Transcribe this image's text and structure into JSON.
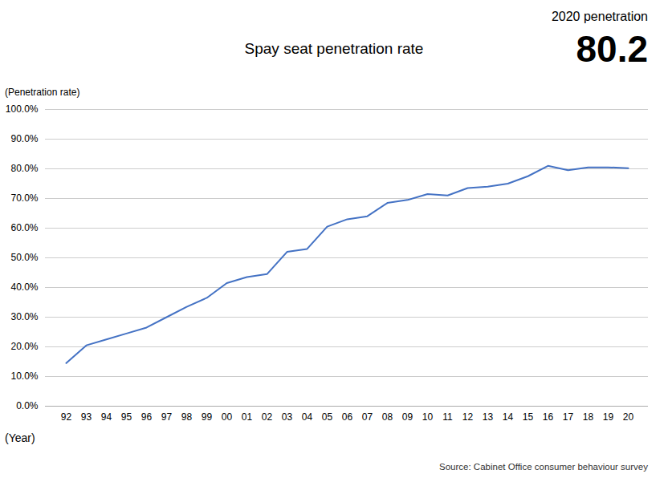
{
  "chart_data": {
    "type": "line",
    "title": "Spay seat penetration rate",
    "subtitle": "2020 penetration",
    "annotation": "80.2",
    "ylabel": "(Penetration rate)",
    "xlabel": "(Year)",
    "source": "Source: Cabinet Office consumer behaviour survey",
    "color": "#4472C4",
    "categories": [
      "92",
      "93",
      "94",
      "95",
      "96",
      "97",
      "98",
      "99",
      "00",
      "01",
      "02",
      "03",
      "04",
      "05",
      "06",
      "07",
      "08",
      "09",
      "10",
      "11",
      "12",
      "13",
      "14",
      "15",
      "16",
      "17",
      "18",
      "19",
      "20"
    ],
    "values": [
      14.5,
      20.5,
      22.5,
      24.5,
      26.5,
      30.0,
      33.5,
      36.5,
      41.5,
      43.5,
      44.5,
      52.0,
      53.0,
      60.5,
      63.0,
      64.0,
      68.5,
      69.5,
      71.5,
      71.0,
      73.5,
      74.0,
      75.0,
      77.5,
      81.0,
      79.5,
      80.5,
      80.5,
      80.2
    ],
    "ylim": [
      0,
      100
    ],
    "yticks": [
      {
        "value": 0,
        "label": "0.0%"
      },
      {
        "value": 10,
        "label": "10.0%"
      },
      {
        "value": 20,
        "label": "20.0%"
      },
      {
        "value": 30,
        "label": "30.0%"
      },
      {
        "value": 40,
        "label": "40.0%"
      },
      {
        "value": 50,
        "label": "50.0%"
      },
      {
        "value": 60,
        "label": "60.0%"
      },
      {
        "value": 70,
        "label": "70.0%"
      },
      {
        "value": 80,
        "label": "80.0%"
      },
      {
        "value": 90,
        "label": "90.0%"
      },
      {
        "value": 100,
        "label": "100.0%"
      }
    ],
    "grid": true
  }
}
